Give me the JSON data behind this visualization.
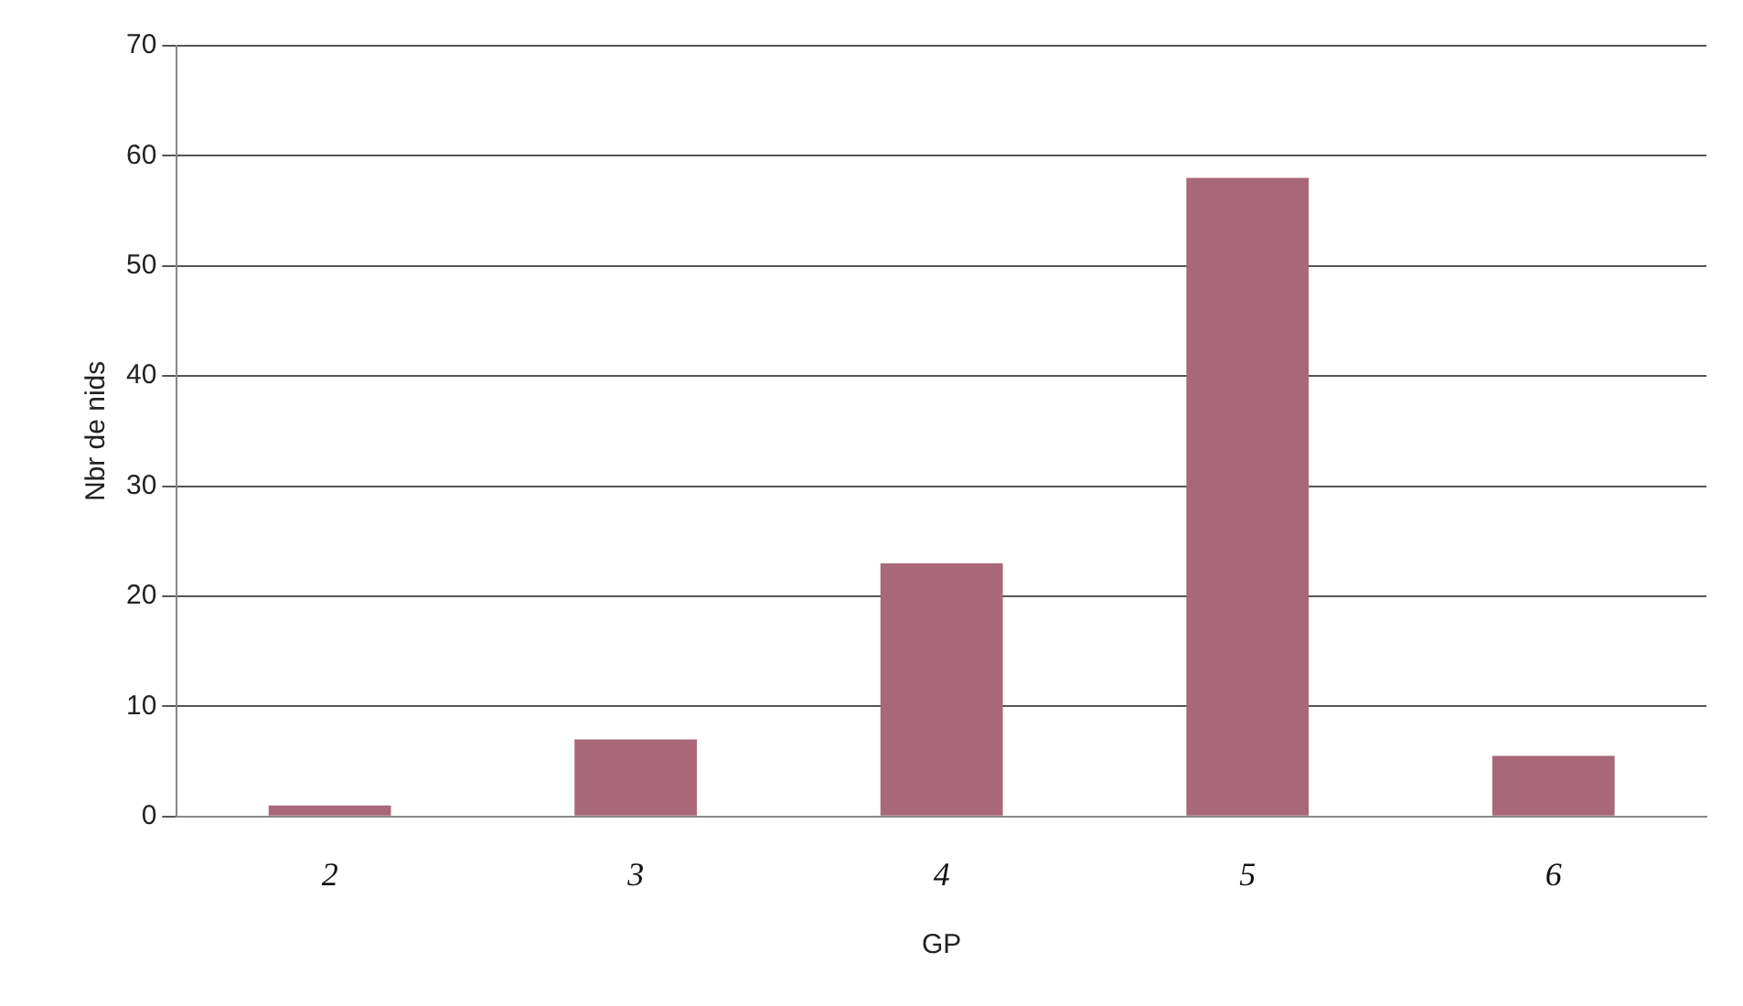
{
  "chart_data": {
    "type": "bar",
    "xlabel": "GP",
    "ylabel": "Nbr de nids",
    "categories": [
      "2",
      "3",
      "4",
      "5",
      "6"
    ],
    "values": [
      1,
      7,
      23,
      58,
      5.5
    ],
    "color": "#a8687a",
    "ylim": [
      0,
      70
    ],
    "yticks": [
      0,
      10,
      20,
      30,
      40,
      50,
      60,
      70
    ],
    "grid": "y",
    "legend": false
  }
}
